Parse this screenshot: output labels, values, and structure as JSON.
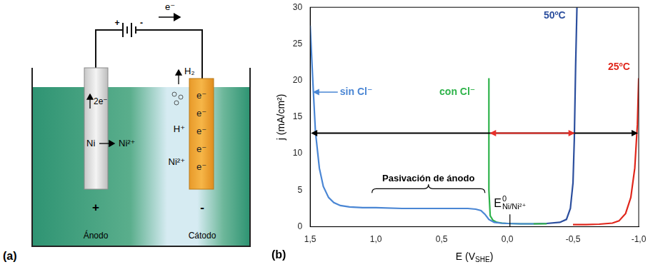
{
  "diagram": {
    "label": "(a)",
    "battery": {
      "positive": "+",
      "negative": "-"
    },
    "electron_flow": "e⁻",
    "anode": {
      "electrons": "2e⁻",
      "reactant": "Ni",
      "product": "Ni²⁺",
      "sign": "+",
      "name": "Ánodo"
    },
    "cathode": {
      "gas": "H₂",
      "electrons": [
        "e⁻",
        "e⁻",
        "e⁻",
        "e⁻",
        "e⁻"
      ],
      "ions": [
        "H⁺",
        "Ni²⁺"
      ],
      "sign": "-",
      "name": "Cátodo"
    }
  },
  "chart_data": {
    "type": "line",
    "panel_label": "(b)",
    "ylabel": "j (mA/cm²)",
    "xlabel": {
      "text": "E (V",
      "subscript": "SHE",
      "suffix": ")"
    },
    "xlim": [
      1.5,
      -1.0
    ],
    "xticks": [
      {
        "value": 1.5,
        "label": "1,5"
      },
      {
        "value": 1.0,
        "label": "1,0"
      },
      {
        "value": 0.5,
        "label": "0,5"
      },
      {
        "value": 0.0,
        "label": "0,0"
      },
      {
        "value": -0.5,
        "label": "-0,5"
      },
      {
        "value": -1.0,
        "label": "-1,0"
      }
    ],
    "ylim": [
      0,
      30
    ],
    "yticks": [
      0,
      5,
      10,
      15,
      20,
      25,
      30
    ],
    "grid": false,
    "legend": false,
    "series": [
      {
        "name": "sin Cl⁻",
        "color": "#4a86d4",
        "x": [
          1.5,
          1.48,
          1.46,
          1.43,
          1.4,
          1.36,
          1.32,
          1.27,
          1.2,
          1.1,
          1.0,
          0.8,
          0.6,
          0.4,
          0.3,
          0.24,
          0.2,
          0.17,
          0.14,
          0.1,
          0.05,
          0.0,
          -0.1,
          -0.2
        ],
        "values": [
          27.5,
          20,
          13,
          8,
          5.5,
          4,
          3.3,
          2.9,
          2.7,
          2.6,
          2.6,
          2.5,
          2.5,
          2.5,
          2.5,
          2.4,
          2.2,
          1.7,
          1.0,
          0.6,
          0.5,
          0.45,
          0.4,
          0.4
        ],
        "label_x": 1.15,
        "label_y": 18.4,
        "label_arrow_to": 1.48
      },
      {
        "name": "con Cl⁻",
        "color": "#2eb34a",
        "x": [
          0.14,
          0.14,
          0.13,
          0.11,
          0.08,
          0.04,
          0.0,
          -0.1,
          -0.2,
          -0.3
        ],
        "values": [
          20.3,
          5,
          1.5,
          0.9,
          0.6,
          0.5,
          0.45,
          0.4,
          0.4,
          0.4
        ],
        "label_x": 0.38,
        "label_y": 18.4
      },
      {
        "name": "50ºC",
        "color": "#2c4f9e",
        "x": [
          -0.2,
          -0.3,
          -0.4,
          -0.45,
          -0.48,
          -0.5,
          -0.51,
          -0.52,
          -0.53
        ],
        "values": [
          0.4,
          0.45,
          0.6,
          1.0,
          2.5,
          6,
          12,
          22,
          30
        ],
        "label_x": -0.36,
        "label_y": 28.8
      },
      {
        "name": "25ºC",
        "color": "#e0261b",
        "x": [
          -0.5,
          -0.6,
          -0.7,
          -0.8,
          -0.85,
          -0.9,
          -0.94,
          -0.97,
          -0.99,
          -1.0
        ],
        "values": [
          0.3,
          0.3,
          0.35,
          0.5,
          0.8,
          1.8,
          4,
          8,
          14,
          20.3
        ],
        "label_x": -0.85,
        "label_y": 21.8
      }
    ],
    "annotations": [
      {
        "type": "bracket",
        "text": "Pasivación de ánodo",
        "x": [
          1.03,
          0.17
        ],
        "y": 5.2
      },
      {
        "type": "vline",
        "text": "E",
        "superscript": "0",
        "subscript": "Ni/Ni²⁺",
        "x": -0.02,
        "y": [
          0,
          1.7
        ]
      }
    ],
    "arrows": [
      {
        "x": [
          1.5,
          -1.0
        ],
        "y": 12.8,
        "color": "#000000"
      },
      {
        "x": [
          0.14,
          -0.52
        ],
        "y": 12.8,
        "color": "#e8302a"
      }
    ]
  }
}
